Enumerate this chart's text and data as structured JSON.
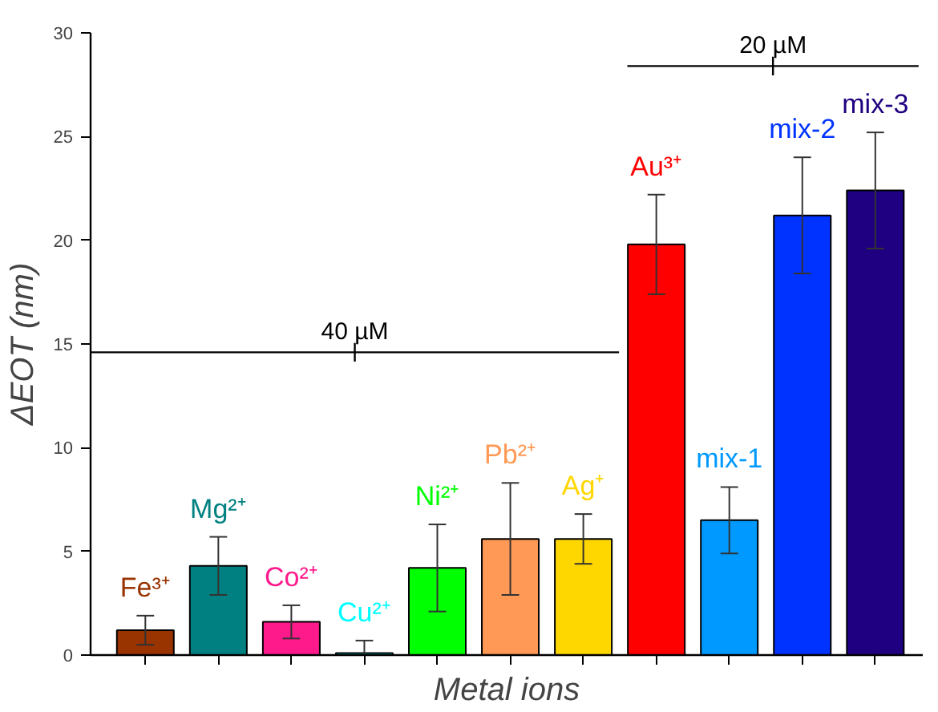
{
  "chart_data": {
    "type": "bar",
    "xlabel": "Metal ions",
    "ylabel": "ΔEOT (nm)",
    "categories": [
      "Fe³⁺",
      "Mg²⁺",
      "Co²⁺",
      "Cu²⁺",
      "Ni²⁺",
      "Pb²⁺",
      "Ag⁺",
      "Au³⁺",
      "mix-1",
      "mix-2",
      "mix-3"
    ],
    "values": [
      1.2,
      4.3,
      1.6,
      0.1,
      4.2,
      5.6,
      5.6,
      19.8,
      6.5,
      21.2,
      22.4
    ],
    "errors": [
      0.7,
      1.4,
      0.8,
      0.6,
      2.1,
      2.7,
      1.2,
      2.4,
      1.6,
      2.8,
      2.8
    ],
    "colors": [
      "#993300",
      "#008080",
      "#ff1a8c",
      "#00ffff",
      "#00ff00",
      "#ff9955",
      "#ffd700",
      "#ff0000",
      "#0099ff",
      "#0033ff",
      "#1f0080"
    ],
    "ylim": [
      0,
      30
    ],
    "yticks": [
      0,
      5,
      10,
      15,
      20,
      25,
      30
    ],
    "tick_labels": "y",
    "grid": false,
    "ref_lines": [
      {
        "axis": "y",
        "value": 14.6,
        "label": "40 µM",
        "color": "#000000"
      },
      {
        "axis": "y",
        "value": 28.4,
        "label": "20 µM",
        "color": "#000000"
      }
    ]
  }
}
